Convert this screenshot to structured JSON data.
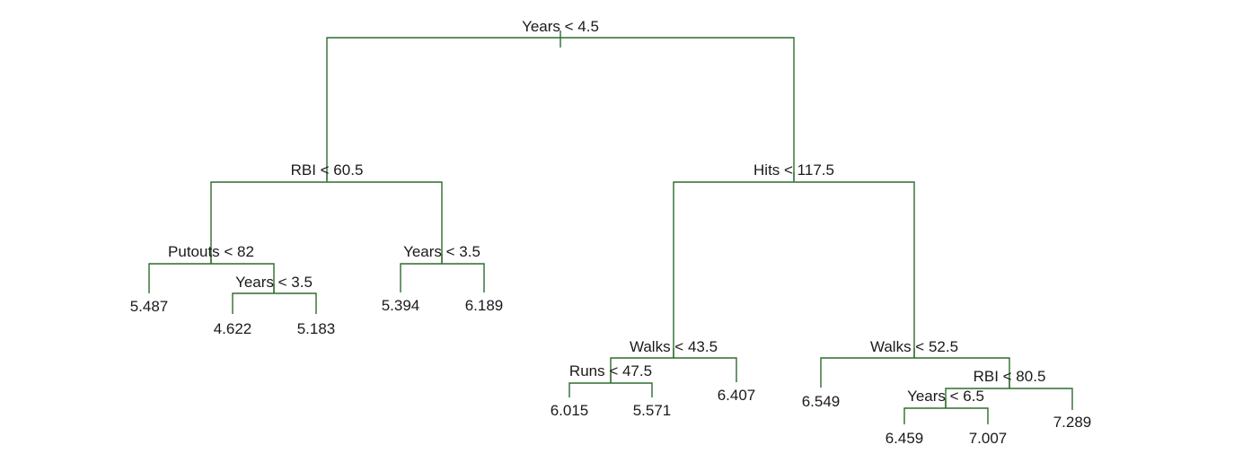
{
  "tree": {
    "root": {
      "label": "Years < 4.5",
      "left": {
        "label": "RBI < 60.5",
        "left": {
          "label": "Putouts < 82",
          "left": {
            "leaf": "5.487"
          },
          "right": {
            "label": "Years < 3.5",
            "left": {
              "leaf": "4.622"
            },
            "right": {
              "leaf": "5.183"
            }
          }
        },
        "right": {
          "label": "Years < 3.5",
          "left": {
            "leaf": "5.394"
          },
          "right": {
            "leaf": "6.189"
          }
        }
      },
      "right": {
        "label": "Hits < 117.5",
        "left": {
          "label": "Walks < 43.5",
          "left": {
            "label": "Runs < 47.5",
            "left": {
              "leaf": "6.015"
            },
            "right": {
              "leaf": "5.571"
            }
          },
          "right": {
            "leaf": "6.407"
          }
        },
        "right": {
          "label": "Walks < 52.5",
          "left": {
            "leaf": "6.549"
          },
          "right": {
            "label": "RBI < 80.5",
            "left": {
              "label": "Years < 6.5",
              "left": {
                "leaf": "6.459"
              },
              "right": {
                "leaf": "7.007"
              }
            },
            "right": {
              "leaf": "7.289"
            }
          }
        }
      }
    }
  }
}
